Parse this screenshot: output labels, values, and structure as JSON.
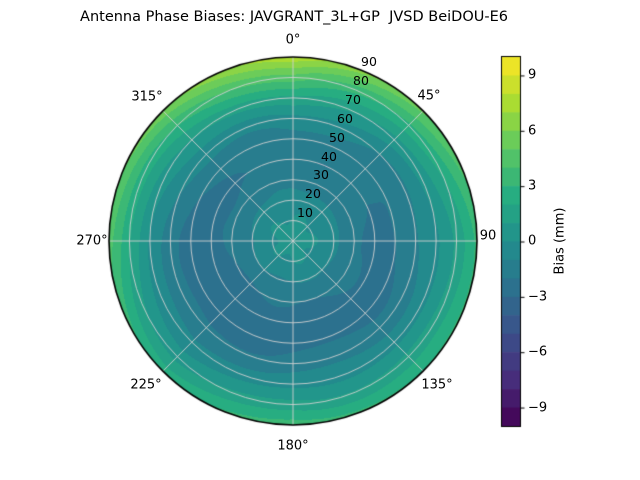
{
  "title": "Antenna Phase Biases: JAVGRANT_3L+GP  JVSD BeiDOU-E6",
  "polar_axis": {
    "angular_labels": [
      "0°",
      "45°",
      "90",
      "135°",
      "180°",
      "225°",
      "270°",
      "315°"
    ],
    "radial_labels": [
      "10",
      "20",
      "30",
      "40",
      "50",
      "60",
      "70",
      "80",
      "90"
    ]
  },
  "colorbar": {
    "label": "Bias (mm)",
    "tick_labels": [
      "9",
      "6",
      "3",
      "0",
      "−3",
      "−6",
      "−9"
    ],
    "tick_values": [
      9,
      6,
      3,
      0,
      -3,
      -6,
      -9
    ]
  },
  "chart_data": {
    "type": "heatmap",
    "projection": "polar",
    "title": "Antenna Phase Biases: JAVGRANT_3L+GP  JVSD BeiDOU-E6",
    "colorbar_label": "Bias (mm)",
    "azimuth_deg": [
      0,
      45,
      90,
      135,
      180,
      225,
      270,
      315
    ],
    "zenith_deg": [
      0,
      10,
      20,
      30,
      40,
      50,
      60,
      70,
      80,
      90
    ],
    "bias_mm": [
      [
        0.5,
        0.1,
        -0.6,
        -1.3,
        -1.8,
        -1.5,
        -0.3,
        1.8,
        4.6,
        7.8
      ],
      [
        0.5,
        0.1,
        -0.7,
        -1.5,
        -2.0,
        -1.8,
        -0.9,
        0.6,
        2.6,
        5.2
      ],
      [
        0.5,
        0.0,
        -0.8,
        -1.6,
        -2.2,
        -2.1,
        -1.3,
        -0.2,
        1.4,
        3.3
      ],
      [
        0.5,
        0.0,
        -0.9,
        -1.8,
        -2.4,
        -2.3,
        -1.5,
        -0.4,
        1.2,
        3.0
      ],
      [
        0.5,
        0.0,
        -1.0,
        -1.9,
        -2.5,
        -2.4,
        -1.5,
        -0.3,
        1.4,
        3.6
      ],
      [
        0.5,
        -0.1,
        -1.1,
        -2.1,
        -2.9,
        -2.8,
        -1.9,
        -0.8,
        0.7,
        2.6
      ],
      [
        0.5,
        0.0,
        -1.0,
        -1.9,
        -2.6,
        -2.4,
        -1.4,
        -0.2,
        1.9,
        4.4
      ],
      [
        0.5,
        0.1,
        -0.8,
        -1.5,
        -2.1,
        -1.8,
        -0.7,
        1.0,
        3.2,
        5.8
      ]
    ],
    "vmin": -10,
    "vmax": 10,
    "level_step_mm": 1,
    "colorbar_ticks": [
      9,
      6,
      3,
      0,
      -3,
      -6,
      -9
    ],
    "colormap": "viridis",
    "colormap_stops": [
      {
        "t": 0.0,
        "color": "#440154"
      },
      {
        "t": 0.125,
        "color": "#472d7b"
      },
      {
        "t": 0.25,
        "color": "#3b518b"
      },
      {
        "t": 0.375,
        "color": "#2c718e"
      },
      {
        "t": 0.5,
        "color": "#21908d"
      },
      {
        "t": 0.625,
        "color": "#27ad81"
      },
      {
        "t": 0.75,
        "color": "#5cc863"
      },
      {
        "t": 0.875,
        "color": "#aadc32"
      },
      {
        "t": 1.0,
        "color": "#fde725"
      }
    ],
    "grid": true,
    "grid_color": "#d2d2d2",
    "outline_color": "#000000",
    "background_color": "#ffffff"
  }
}
